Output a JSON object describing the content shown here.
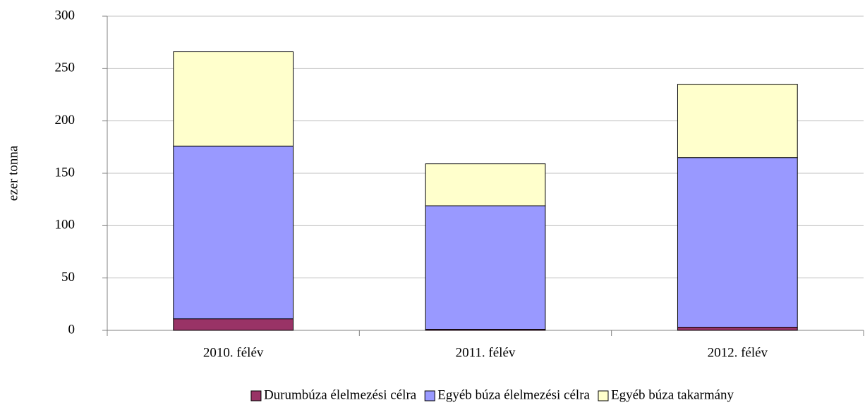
{
  "chart_data": {
    "type": "bar",
    "stacked": true,
    "y_label": "ezer tonna",
    "categories": [
      "2010. félév",
      "2011. félév",
      "2012. félév"
    ],
    "series": [
      {
        "name": "Durumbúza élelmezési célra",
        "color": "#993366",
        "values": [
          11,
          1,
          3
        ]
      },
      {
        "name": "Egyéb búza élelmezési célra",
        "color": "#9999ff",
        "values": [
          165,
          118,
          162
        ]
      },
      {
        "name": "Egyéb búza takarmány",
        "color": "#ffffcc",
        "values": [
          90,
          40,
          70
        ]
      }
    ],
    "ylim": [
      0,
      300
    ],
    "yticks": [
      0,
      50,
      100,
      150,
      200,
      250,
      300
    ],
    "grid": true
  }
}
